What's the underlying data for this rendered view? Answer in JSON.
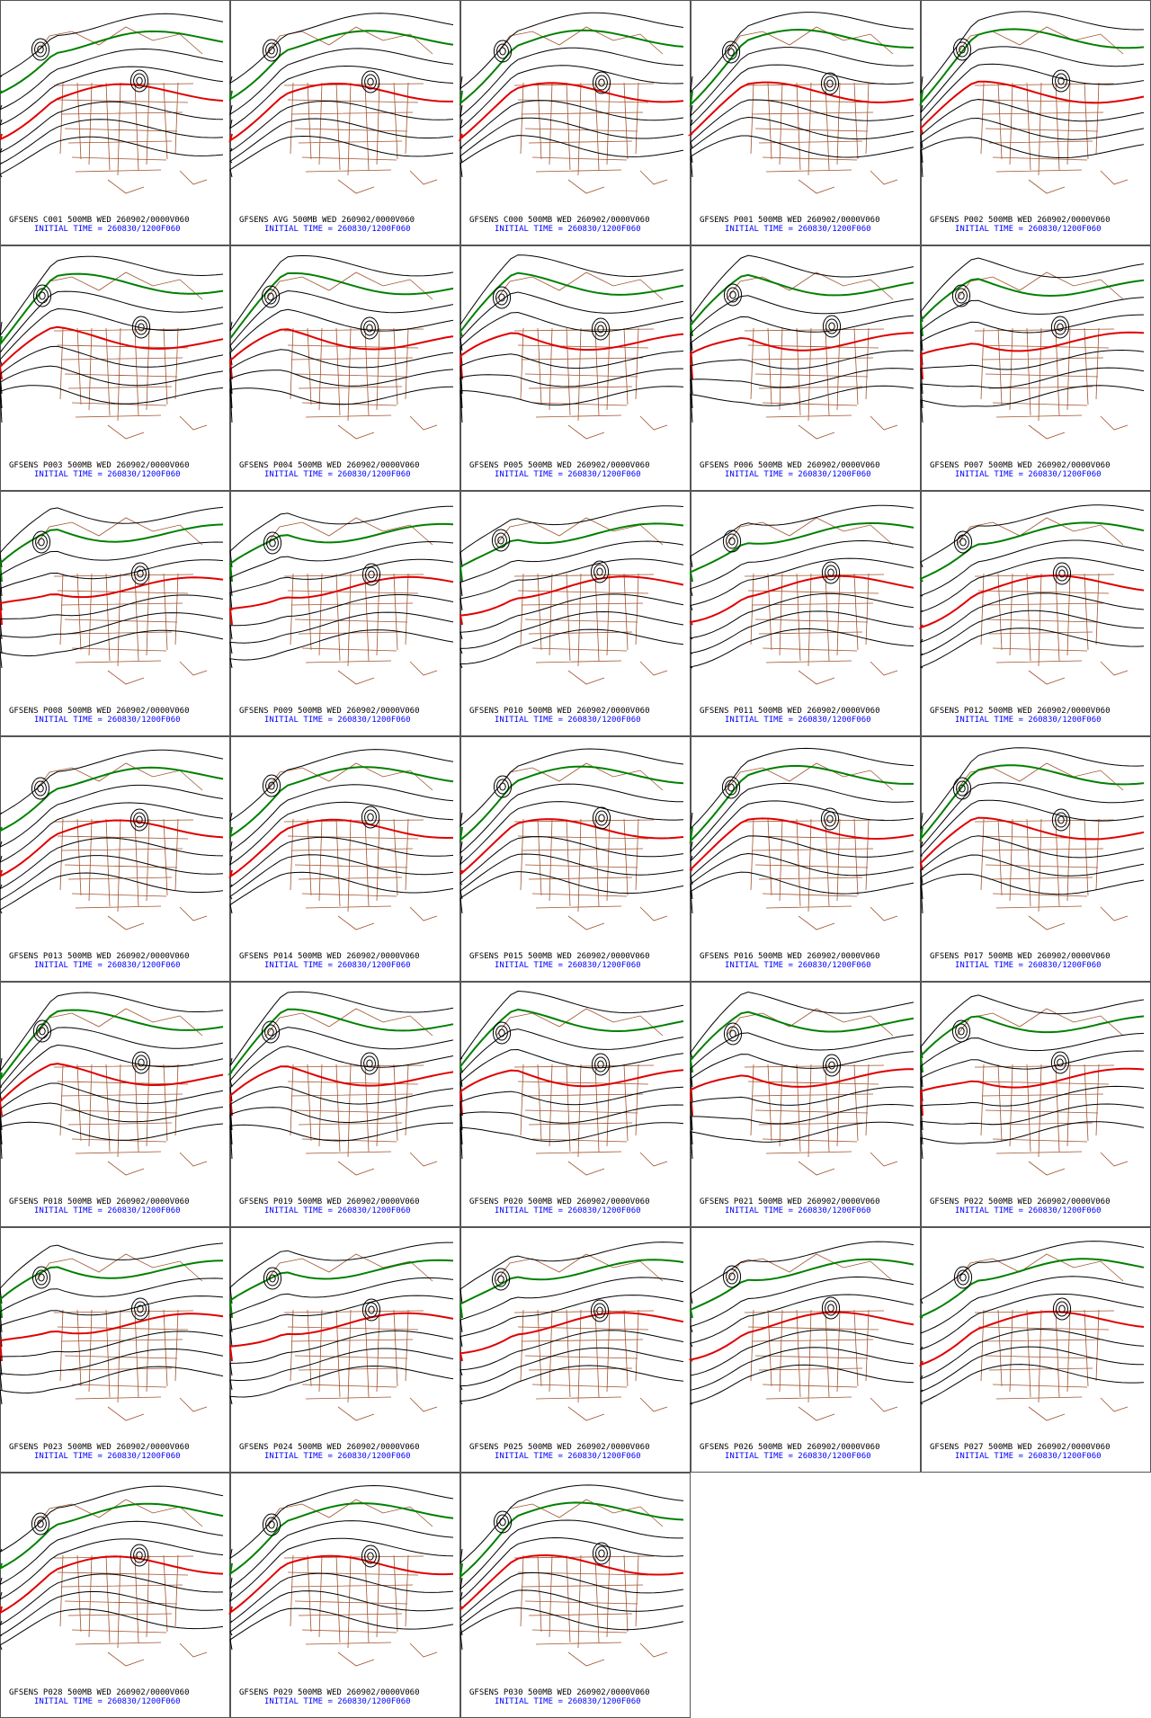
{
  "panels": [
    {
      "caption": "GFSENS C001 500MB WED 260902/0000V060",
      "initial_time": "INITIAL TIME = 260830/1200F060"
    },
    {
      "caption": "GFSENS AVG 500MB WED 260902/0000V060",
      "initial_time": "INITIAL TIME = 260830/1200F060"
    },
    {
      "caption": "GFSENS C000 500MB WED 260902/0000V060",
      "initial_time": "INITIAL TIME = 260830/1200F060"
    },
    {
      "caption": "GFSENS P001 500MB WED 260902/0000V060",
      "initial_time": "INITIAL TIME = 260830/1200F060"
    },
    {
      "caption": "GFSENS P002 500MB WED 260902/0000V060",
      "initial_time": "INITIAL TIME = 260830/1200F060"
    },
    {
      "caption": "GFSENS P003 500MB WED 260902/0000V060",
      "initial_time": "INITIAL TIME = 260830/1200F060"
    },
    {
      "caption": "GFSENS P004 500MB WED 260902/0000V060",
      "initial_time": "INITIAL TIME = 260830/1200F060"
    },
    {
      "caption": "GFSENS P005 500MB WED 260902/0000V060",
      "initial_time": "INITIAL TIME = 260830/1200F060"
    },
    {
      "caption": "GFSENS P006 500MB WED 260902/0000V060",
      "initial_time": "INITIAL TIME = 260830/1200F060"
    },
    {
      "caption": "GFSENS P007 500MB WED 260902/0000V060",
      "initial_time": "INITIAL TIME = 260830/1200F060"
    },
    {
      "caption": "GFSENS P008 500MB WED 260902/0000V060",
      "initial_time": "INITIAL TIME = 260830/1200F060"
    },
    {
      "caption": "GFSENS P009 500MB WED 260902/0000V060",
      "initial_time": "INITIAL TIME = 260830/1200F060"
    },
    {
      "caption": "GFSENS P010 500MB WED 260902/0000V060",
      "initial_time": "INITIAL TIME = 260830/1200F060"
    },
    {
      "caption": "GFSENS P011 500MB WED 260902/0000V060",
      "initial_time": "INITIAL TIME = 260830/1200F060"
    },
    {
      "caption": "GFSENS P012 500MB WED 260902/0000V060",
      "initial_time": "INITIAL TIME = 260830/1200F060"
    },
    {
      "caption": "GFSENS P013 500MB WED 260902/0000V060",
      "initial_time": "INITIAL TIME = 260830/1200F060"
    },
    {
      "caption": "GFSENS P014 500MB WED 260902/0000V060",
      "initial_time": "INITIAL TIME = 260830/1200F060"
    },
    {
      "caption": "GFSENS P015 500MB WED 260902/0000V060",
      "initial_time": "INITIAL TIME = 260830/1200F060"
    },
    {
      "caption": "GFSENS P016 500MB WED 260902/0000V060",
      "initial_time": "INITIAL TIME = 260830/1200F060"
    },
    {
      "caption": "GFSENS P017 500MB WED 260902/0000V060",
      "initial_time": "INITIAL TIME = 260830/1200F060"
    },
    {
      "caption": "GFSENS P018 500MB WED 260902/0000V060",
      "initial_time": "INITIAL TIME = 260830/1200F060"
    },
    {
      "caption": "GFSENS P019 500MB WED 260902/0000V060",
      "initial_time": "INITIAL TIME = 260830/1200F060"
    },
    {
      "caption": "GFSENS P020 500MB WED 260902/0000V060",
      "initial_time": "INITIAL TIME = 260830/1200F060"
    },
    {
      "caption": "GFSENS P021 500MB WED 260902/0000V060",
      "initial_time": "INITIAL TIME = 260830/1200F060"
    },
    {
      "caption": "GFSENS P022 500MB WED 260902/0000V060",
      "initial_time": "INITIAL TIME = 260830/1200F060"
    },
    {
      "caption": "GFSENS P023 500MB WED 260902/0000V060",
      "initial_time": "INITIAL TIME = 260830/1200F060"
    },
    {
      "caption": "GFSENS P024 500MB WED 260902/0000V060",
      "initial_time": "INITIAL TIME = 260830/1200F060"
    },
    {
      "caption": "GFSENS P025 500MB WED 260902/0000V060",
      "initial_time": "INITIAL TIME = 260830/1200F060"
    },
    {
      "caption": "GFSENS P026 500MB WED 260902/0000V060",
      "initial_time": "INITIAL TIME = 260830/1200F060"
    },
    {
      "caption": "GFSENS P027 500MB WED 260902/0000V060",
      "initial_time": "INITIAL TIME = 260830/1200F060"
    },
    {
      "caption": "GFSENS P028 500MB WED 260902/0000V060",
      "initial_time": "INITIAL TIME = 260830/1200F060"
    },
    {
      "caption": "GFSENS P029 500MB WED 260902/0000V060",
      "initial_time": "INITIAL TIME = 260830/1200F060"
    },
    {
      "caption": "GFSENS P030 500MB WED 260902/0000V060",
      "initial_time": "INITIAL TIME = 260830/1200F060"
    }
  ]
}
